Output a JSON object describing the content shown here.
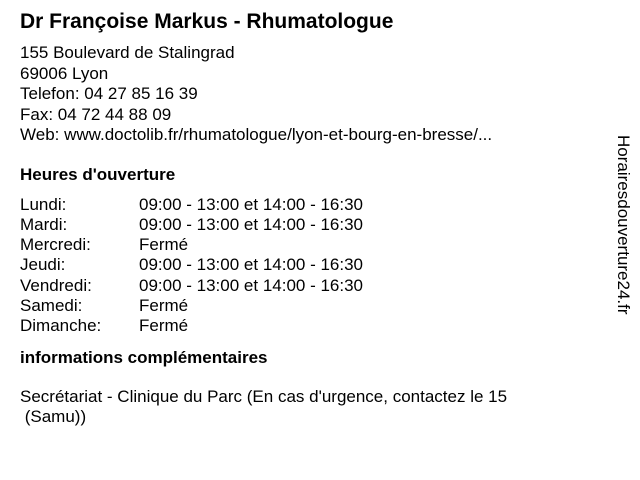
{
  "title": "Dr Françoise Markus - Rhumatologue",
  "address": {
    "street": "155 Boulevard de Stalingrad",
    "city": "69006 Lyon",
    "phone": "Telefon: 04 27 85 16 39",
    "fax": "Fax: 04 72 44 88 09",
    "web": "Web: www.doctolib.fr/rhumatologue/lyon-et-bourg-en-bresse/..."
  },
  "hours": {
    "heading": "Heures d'ouverture",
    "rows": [
      {
        "day": "Lundi:",
        "time": "09:00 - 13:00 et 14:00 - 16:30"
      },
      {
        "day": "Mardi:",
        "time": "09:00 - 13:00 et 14:00 - 16:30"
      },
      {
        "day": "Mercredi:",
        "time": "Fermé"
      },
      {
        "day": "Jeudi:",
        "time": "09:00 - 13:00 et 14:00 - 16:30"
      },
      {
        "day": "Vendredi:",
        "time": "09:00 - 13:00 et 14:00 - 16:30"
      },
      {
        "day": "Samedi:",
        "time": "Fermé"
      },
      {
        "day": "Dimanche:",
        "time": "Fermé"
      }
    ]
  },
  "info": {
    "heading": "informations complémentaires",
    "line1": "Secrétariat - Clinique du Parc (En cas d'urgence, contactez le 15",
    "line2": " (Samu))"
  },
  "watermark": "Horairesdouverture24.fr"
}
